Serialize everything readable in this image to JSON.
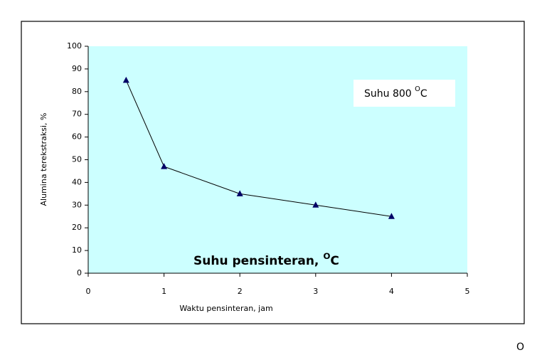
{
  "chart_data": {
    "type": "line",
    "x": [
      0.5,
      1,
      2,
      3,
      4
    ],
    "series": [
      {
        "color": "#000066",
        "values": [
          85,
          47,
          35,
          30,
          25
        ]
      }
    ],
    "xlim": [
      0,
      5
    ],
    "xticks": [
      0,
      1,
      2,
      3,
      4,
      5
    ],
    "ylim": [
      0,
      100
    ],
    "yticks": [
      0,
      10,
      20,
      30,
      40,
      50,
      60,
      70,
      80,
      90,
      100
    ],
    "xlabel": "Waktu pensinteran, jam",
    "ylabel": "Alumina terekstraksi, %",
    "grid": false,
    "plot_background": "#ccffff",
    "annotations": [
      {
        "text": "Suhu 800 ",
        "superscript": "O",
        "suffix": "C"
      },
      {
        "text": "Suhu pensinteran, ",
        "superscript": "O",
        "suffix": "C"
      },
      {
        "text": "O"
      }
    ]
  }
}
